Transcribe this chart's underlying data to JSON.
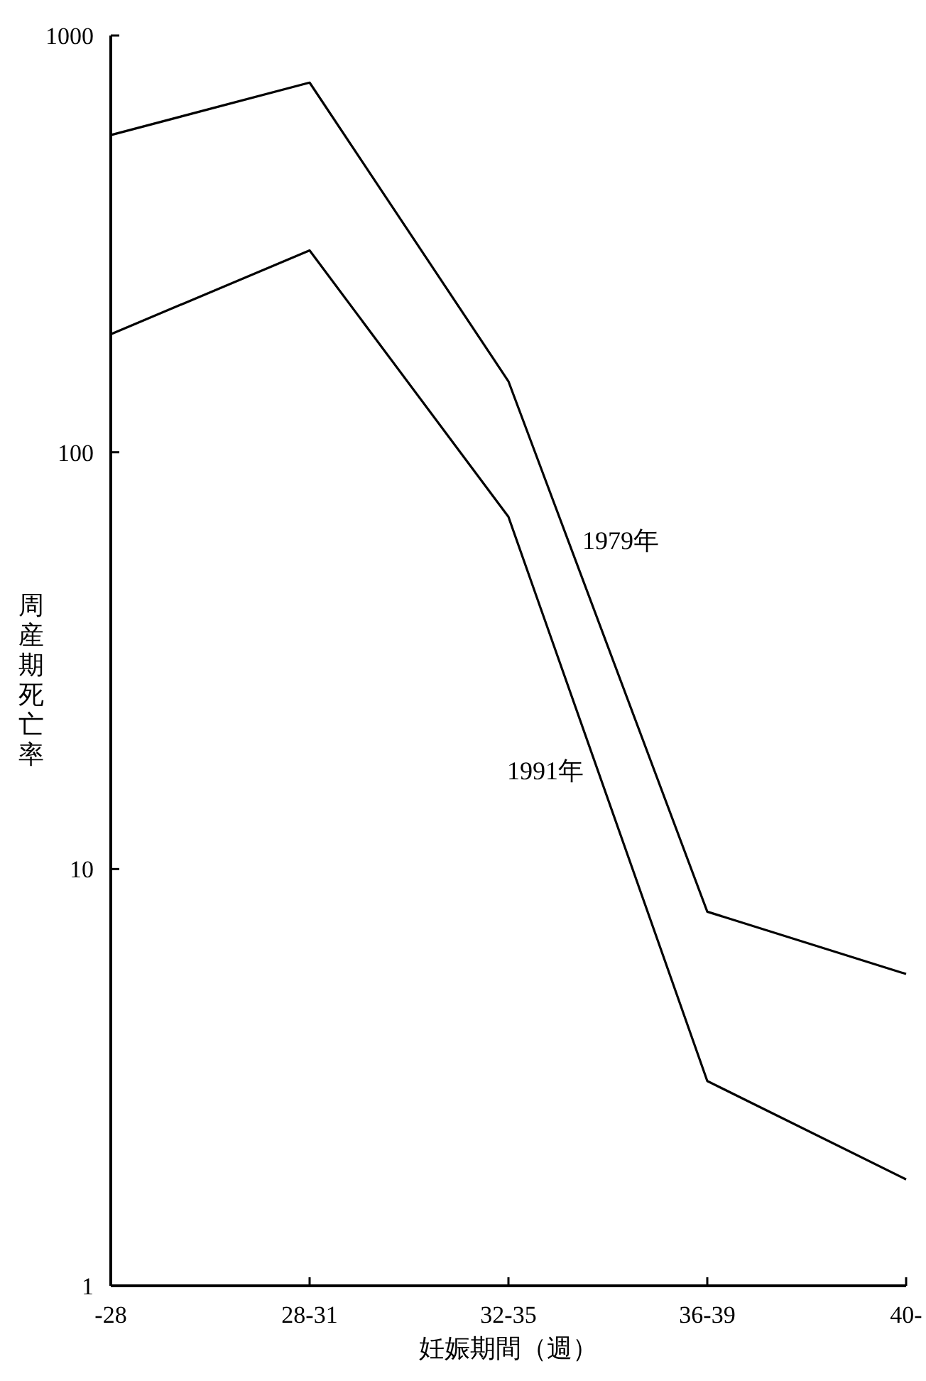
{
  "chart_data": {
    "type": "line",
    "xlabel": "妊娠期間（週）",
    "ylabel": "周産期死亡率",
    "categories": [
      "-28",
      "28-31",
      "32-35",
      "36-39",
      "40-"
    ],
    "series": [
      {
        "name": "1979年",
        "color": "#000000",
        "values": [
          577,
          771,
          148,
          7.9,
          5.6
        ]
      },
      {
        "name": "1991年",
        "color": "#000000",
        "values": [
          192,
          305,
          70,
          3.1,
          1.8
        ]
      }
    ],
    "log": "y",
    "ylim": [
      1,
      1000
    ],
    "yticks": [
      1,
      10,
      100,
      1000
    ],
    "grid": false,
    "legend": false,
    "marker": "none",
    "line_style": "solid"
  }
}
